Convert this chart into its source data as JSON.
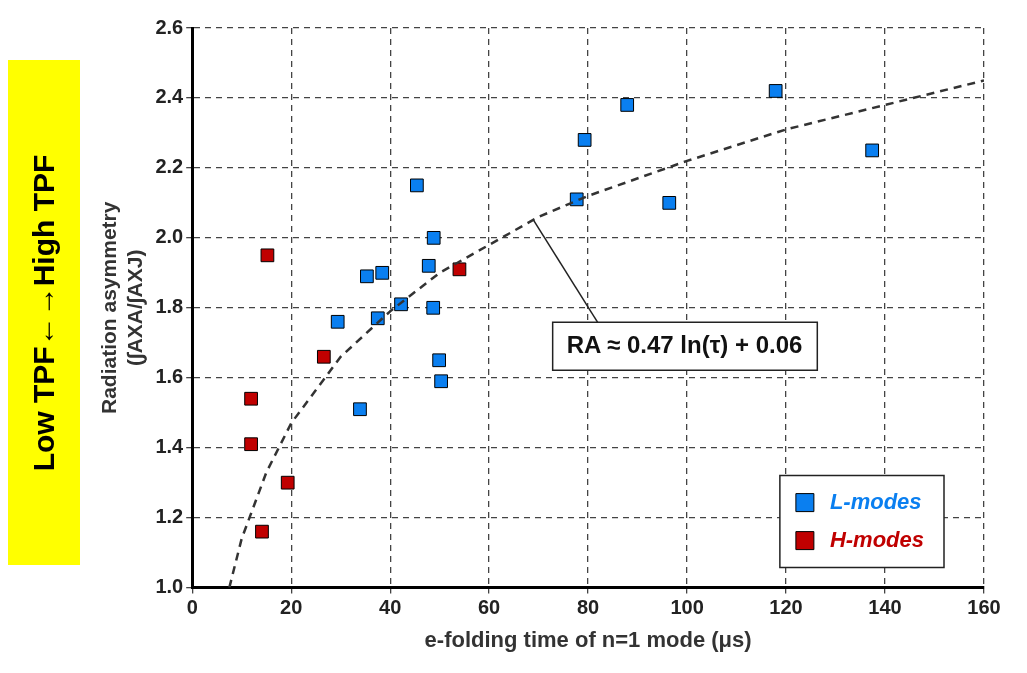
{
  "chart_data": {
    "type": "scatter",
    "xlabel": "e-folding time of n=1 mode (μs)",
    "ylabel": [
      "Radiation asymmetry",
      "(∫AXA/∫AXJ)"
    ],
    "xlim": [
      0,
      160
    ],
    "xticks": [
      0,
      20,
      40,
      60,
      80,
      100,
      120,
      140,
      160
    ],
    "ylim": [
      1.0,
      2.6
    ],
    "yticks": [
      {
        "value": 1.0,
        "label": "1.0"
      },
      1.2,
      1.4,
      1.6,
      1.8,
      {
        "value": 2.0,
        "label": "2.0"
      },
      2.2,
      2.4,
      2.6
    ],
    "grid": true,
    "legend": "bottom right",
    "marker": "square",
    "series": [
      {
        "name": "L-modes",
        "color": "#0a7ff0",
        "x": [
          79.3,
          45.4,
          77.7,
          48.8,
          47.8,
          35.3,
          38.4,
          42.2,
          48.7,
          29.4,
          37.5,
          49.9,
          50.3,
          33.9,
          87.9,
          96.4,
          117.9,
          137.4
        ],
        "values": [
          2.28,
          2.15,
          2.11,
          2.0,
          1.92,
          1.89,
          1.9,
          1.81,
          1.8,
          1.76,
          1.77,
          1.65,
          1.59,
          1.51,
          2.38,
          2.1,
          2.42,
          2.25
        ]
      },
      {
        "name": "H-modes",
        "color": "#c00000",
        "x": [
          15.2,
          54.0,
          26.6,
          11.9,
          11.9,
          19.3,
          14.1
        ],
        "values": [
          1.95,
          1.91,
          1.66,
          1.54,
          1.41,
          1.3,
          1.16
        ]
      },
      {
        "type": "line",
        "color": "#333333",
        "line_style": "dashed",
        "marker": "none",
        "x": [
          7.5,
          10,
          15,
          20,
          30,
          40,
          50,
          60,
          70,
          80,
          100,
          120,
          140,
          160
        ],
        "values": [
          1.0,
          1.14,
          1.33,
          1.47,
          1.66,
          1.79,
          1.9,
          1.98,
          2.06,
          2.12,
          2.22,
          2.31,
          2.38,
          2.45
        ]
      }
    ],
    "annotations": [
      {
        "text": "RA ≈ 0.47 ln(τ) + 0.06",
        "x": 69,
        "y": 2.05
      },
      "Low TPF←→High TPF"
    ]
  }
}
